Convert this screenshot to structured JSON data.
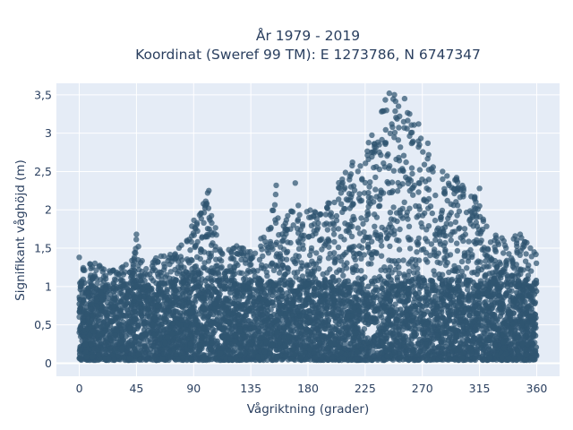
{
  "chart_data": {
    "type": "scatter",
    "title_line1": "År 1979 - 2019",
    "title_line2": "Koordinat (Sweref 99 TM): E 1273786, N 6747347",
    "xlabel": "Vågriktning (grader)",
    "ylabel": "Signifikant våghöjd (m)",
    "xlim": [
      -18,
      378
    ],
    "ylim": [
      -0.17,
      3.65
    ],
    "x_ticks": [
      0,
      45,
      90,
      135,
      180,
      225,
      270,
      315,
      360
    ],
    "x_tick_labels": [
      "0",
      "45",
      "90",
      "135",
      "180",
      "225",
      "270",
      "315",
      "360"
    ],
    "y_ticks": [
      0,
      0.5,
      1,
      1.5,
      2,
      2.5,
      3,
      3.5
    ],
    "y_tick_labels": [
      "0",
      "0,5",
      "1",
      "1,5",
      "2",
      "2,5",
      "3",
      "3,5"
    ],
    "grid": true,
    "marker_color": "#2f5570",
    "background_color": "#e5ecf6",
    "series": [
      {
        "envelope_max_height": [
          [
            0,
            1.38
          ],
          [
            10,
            1.32
          ],
          [
            20,
            1.25
          ],
          [
            30,
            1.28
          ],
          [
            40,
            1.35
          ],
          [
            45,
            1.68
          ],
          [
            50,
            1.3
          ],
          [
            60,
            1.38
          ],
          [
            70,
            1.42
          ],
          [
            80,
            1.55
          ],
          [
            90,
            1.88
          ],
          [
            95,
            1.95
          ],
          [
            100,
            2.22
          ],
          [
            105,
            1.9
          ],
          [
            110,
            1.6
          ],
          [
            120,
            1.52
          ],
          [
            130,
            1.55
          ],
          [
            140,
            1.52
          ],
          [
            150,
            1.88
          ],
          [
            155,
            2.32
          ],
          [
            160,
            1.75
          ],
          [
            170,
            2.35
          ],
          [
            175,
            1.95
          ],
          [
            180,
            2.02
          ],
          [
            190,
            1.95
          ],
          [
            200,
            2.2
          ],
          [
            210,
            2.62
          ],
          [
            220,
            2.55
          ],
          [
            230,
            3.0
          ],
          [
            235,
            3.25
          ],
          [
            240,
            3.42
          ],
          [
            245,
            3.52
          ],
          [
            250,
            3.5
          ],
          [
            255,
            3.45
          ],
          [
            260,
            3.25
          ],
          [
            265,
            3.05
          ],
          [
            270,
            3.12
          ],
          [
            280,
            2.6
          ],
          [
            290,
            2.45
          ],
          [
            300,
            2.42
          ],
          [
            310,
            2.15
          ],
          [
            315,
            2.28
          ],
          [
            320,
            1.8
          ],
          [
            330,
            1.65
          ],
          [
            340,
            1.72
          ],
          [
            350,
            1.65
          ],
          [
            355,
            1.48
          ],
          [
            360,
            1.45
          ]
        ],
        "outliers": [
          [
            45,
            1.68
          ],
          [
            101,
            2.22
          ],
          [
            102,
            2.25
          ],
          [
            155,
            2.32
          ],
          [
            170,
            2.35
          ],
          [
            100,
            2.07
          ],
          [
            238,
            3.28
          ],
          [
            244,
            3.52
          ],
          [
            248,
            3.5
          ],
          [
            256,
            3.45
          ],
          [
            260,
            3.25
          ],
          [
            267,
            3.12
          ],
          [
            286,
            2.4
          ],
          [
            297,
            2.42
          ],
          [
            315,
            2.28
          ],
          [
            347,
            1.68
          ],
          [
            355,
            1.5
          ],
          [
            358,
            1.45
          ],
          [
            0,
            1.38
          ],
          [
            215,
            2.62
          ]
        ]
      }
    ]
  }
}
